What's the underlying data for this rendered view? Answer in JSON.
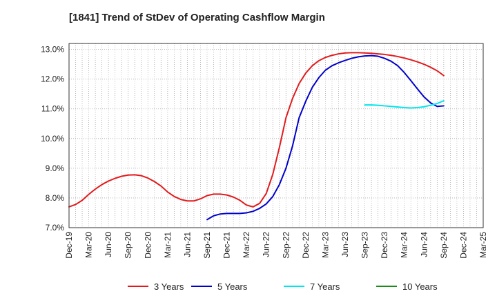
{
  "chart_data": {
    "type": "line",
    "title": "[1841]  Trend of StDev of Operating Cashflow Margin",
    "xlabel": "",
    "ylabel": "",
    "x_ticks": [
      "Dec-19",
      "Mar-20",
      "Jun-20",
      "Sep-20",
      "Dec-20",
      "Mar-21",
      "Jun-21",
      "Sep-21",
      "Dec-21",
      "Mar-22",
      "Jun-22",
      "Sep-22",
      "Dec-22",
      "Mar-23",
      "Jun-23",
      "Sep-23",
      "Dec-23",
      "Mar-24",
      "Jun-24",
      "Sep-24",
      "Dec-24",
      "Mar-25"
    ],
    "y_ticks": [
      "7.0%",
      "8.0%",
      "9.0%",
      "10.0%",
      "11.0%",
      "12.0%",
      "13.0%"
    ],
    "ylim": [
      7.0,
      13.2
    ],
    "grid": true,
    "legend_position": "bottom",
    "series": [
      {
        "name": "3 Years",
        "color": "#e31a1c",
        "x": [
          "Dec-19",
          "Jan-20",
          "Feb-20",
          "Mar-20",
          "Apr-20",
          "May-20",
          "Jun-20",
          "Jul-20",
          "Aug-20",
          "Sep-20",
          "Oct-20",
          "Nov-20",
          "Dec-20",
          "Jan-21",
          "Feb-21",
          "Mar-21",
          "Apr-21",
          "May-21",
          "Jun-21",
          "Jul-21",
          "Aug-21",
          "Sep-21",
          "Oct-21",
          "Nov-21",
          "Dec-21",
          "Jan-22",
          "Feb-22",
          "Mar-22",
          "Apr-22",
          "May-22",
          "Jun-22",
          "Jul-22",
          "Aug-22",
          "Sep-22",
          "Oct-22",
          "Nov-22",
          "Dec-22",
          "Jan-23",
          "Feb-23",
          "Mar-23",
          "Apr-23",
          "May-23",
          "Jun-23",
          "Jul-23",
          "Aug-23",
          "Sep-23",
          "Oct-23",
          "Nov-23",
          "Dec-23",
          "Jan-24",
          "Feb-24",
          "Mar-24",
          "Apr-24",
          "May-24",
          "Jun-24",
          "Jul-24",
          "Aug-24",
          "Sep-24"
        ],
        "values": [
          7.7,
          7.78,
          7.92,
          8.12,
          8.3,
          8.45,
          8.57,
          8.66,
          8.73,
          8.77,
          8.78,
          8.75,
          8.67,
          8.55,
          8.4,
          8.2,
          8.05,
          7.95,
          7.9,
          7.9,
          7.97,
          8.08,
          8.13,
          8.13,
          8.1,
          8.03,
          7.92,
          7.76,
          7.7,
          7.82,
          8.15,
          8.8,
          9.7,
          10.7,
          11.35,
          11.85,
          12.2,
          12.45,
          12.62,
          12.73,
          12.8,
          12.85,
          12.88,
          12.89,
          12.89,
          12.88,
          12.87,
          12.85,
          12.83,
          12.8,
          12.76,
          12.71,
          12.65,
          12.58,
          12.5,
          12.4,
          12.28,
          12.12
        ]
      },
      {
        "name": "5 Years",
        "color": "#0000cc",
        "x": [
          "Sep-21",
          "Oct-21",
          "Nov-21",
          "Dec-21",
          "Jan-22",
          "Feb-22",
          "Mar-22",
          "Apr-22",
          "May-22",
          "Jun-22",
          "Jul-22",
          "Aug-22",
          "Sep-22",
          "Oct-22",
          "Nov-22",
          "Dec-22",
          "Jan-23",
          "Feb-23",
          "Mar-23",
          "Apr-23",
          "May-23",
          "Jun-23",
          "Jul-23",
          "Aug-23",
          "Sep-23",
          "Oct-23",
          "Nov-23",
          "Dec-23",
          "Jan-24",
          "Feb-24",
          "Mar-24",
          "Apr-24",
          "May-24",
          "Jun-24",
          "Jul-24",
          "Aug-24",
          "Sep-24"
        ],
        "values": [
          7.27,
          7.4,
          7.46,
          7.48,
          7.48,
          7.48,
          7.5,
          7.55,
          7.65,
          7.8,
          8.05,
          8.45,
          9.0,
          9.75,
          10.7,
          11.25,
          11.72,
          12.05,
          12.3,
          12.45,
          12.55,
          12.63,
          12.7,
          12.75,
          12.78,
          12.79,
          12.77,
          12.7,
          12.6,
          12.45,
          12.22,
          11.95,
          11.67,
          11.4,
          11.2,
          11.08,
          11.1
        ]
      },
      {
        "name": "7 Years",
        "color": "#00e5ee",
        "x": [
          "Sep-23",
          "Oct-23",
          "Nov-23",
          "Dec-23",
          "Jan-24",
          "Feb-24",
          "Mar-24",
          "Apr-24",
          "May-24",
          "Jun-24",
          "Jul-24",
          "Aug-24",
          "Sep-24"
        ],
        "values": [
          11.13,
          11.13,
          11.12,
          11.1,
          11.08,
          11.06,
          11.04,
          11.03,
          11.04,
          11.07,
          11.12,
          11.18,
          11.27
        ]
      },
      {
        "name": "10 Years",
        "color": "#1a8c1a",
        "x": [],
        "values": []
      }
    ]
  }
}
